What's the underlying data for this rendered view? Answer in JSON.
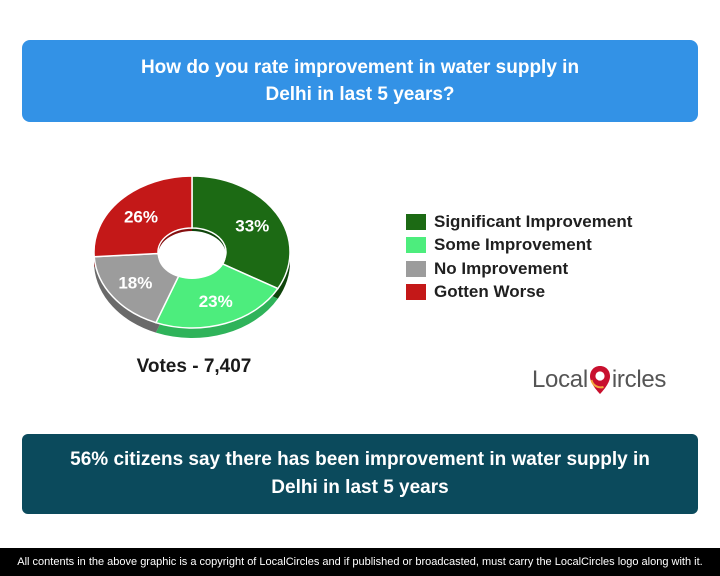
{
  "question": "How do you rate improvement in water supply in Delhi in last 5 years?",
  "chart_data": {
    "type": "pie",
    "style": "donut-3d",
    "categories": [
      "Significant Improvement",
      "Some Improvement",
      "No Improvement",
      "Gotten Worse"
    ],
    "values": [
      33,
      23,
      18,
      26
    ],
    "labels": [
      "33%",
      "23%",
      "18%",
      "26%"
    ],
    "unit": "%",
    "colors": [
      "#1c6a14",
      "#4ded7d",
      "#9c9c9c",
      "#c41818"
    ],
    "shade_colors": [
      "#0f440b",
      "#2fb35a",
      "#6a6a6a",
      "#860f0f"
    ],
    "legend_position": "right"
  },
  "votes": "Votes - 7,407",
  "logo": {
    "part1": "Local",
    "part2": "ircles"
  },
  "summary": "56% citizens say there has been improvement in water supply in Delhi in last 5 years",
  "footer": "All contents in the above graphic is a copyright of LocalCircles and if published or broadcasted, must carry the LocalCircles logo along with it."
}
